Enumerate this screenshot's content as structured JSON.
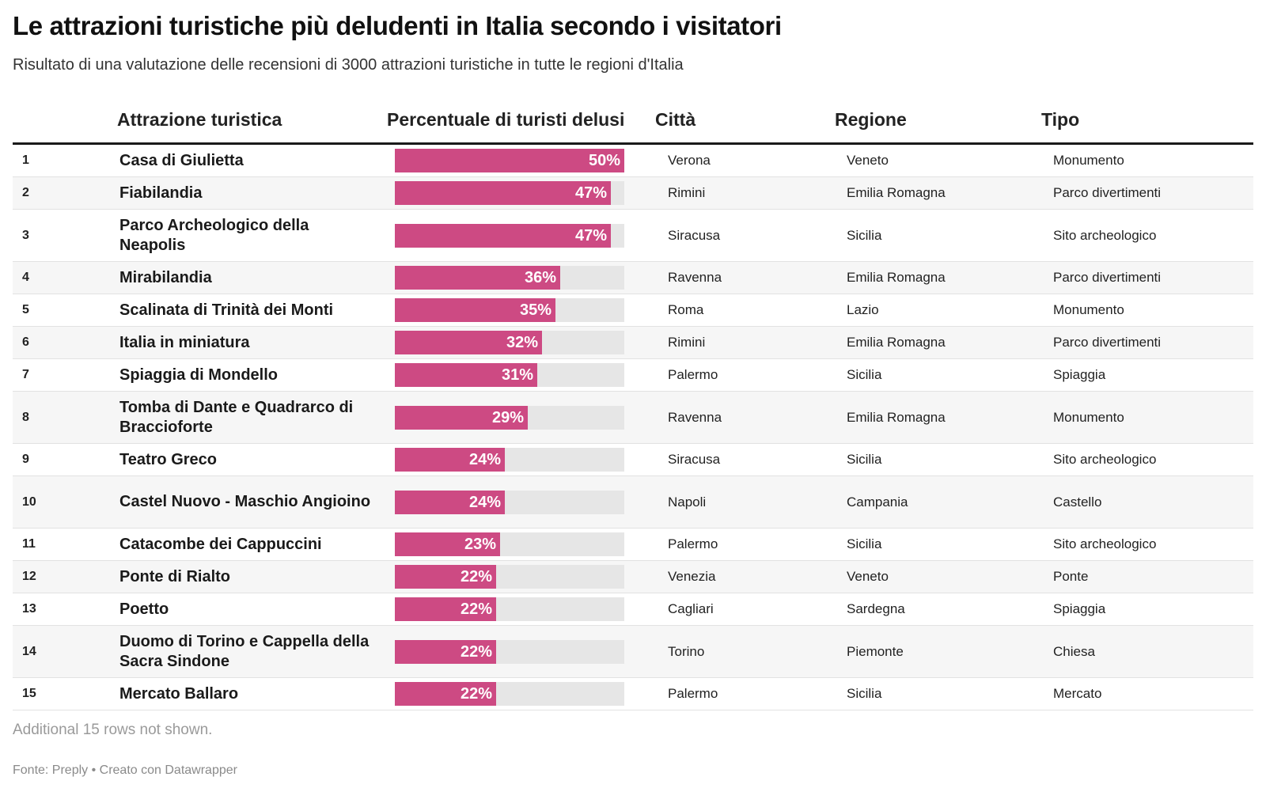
{
  "title": "Le attrazioni turistiche più deludenti in Italia secondo i visitatori",
  "subtitle": "Risultato di una valutazione delle recensioni di 3000 attrazioni turistiche in tutte le regioni d'Italia",
  "columns": {
    "attraction": "Attrazione turistica",
    "percent": "Percentuale di turisti delusi",
    "city": "Città",
    "region": "Regione",
    "type": "Tipo"
  },
  "colors": {
    "bar": "#cd4a83",
    "track": "#e6e6e6",
    "row_alt": "#f6f6f6"
  },
  "chart_data": {
    "type": "table",
    "value_max": 50,
    "rows": [
      {
        "rank": "1",
        "name": "Casa di Giulietta",
        "value": 50,
        "label": "50%",
        "city": "Verona",
        "region": "Veneto",
        "type": "Monumento"
      },
      {
        "rank": "2",
        "name": "Fiabilandia",
        "value": 47,
        "label": "47%",
        "city": "Rimini",
        "region": "Emilia Romagna",
        "type": "Parco divertimenti"
      },
      {
        "rank": "3",
        "name": "Parco Archeologico della Neapolis",
        "value": 47,
        "label": "47%",
        "city": "Siracusa",
        "region": "Sicilia",
        "type": "Sito archeologico"
      },
      {
        "rank": "4",
        "name": "Mirabilandia",
        "value": 36,
        "label": "36%",
        "city": "Ravenna",
        "region": "Emilia Romagna",
        "type": "Parco divertimenti"
      },
      {
        "rank": "5",
        "name": "Scalinata di Trinità dei Monti",
        "value": 35,
        "label": "35%",
        "city": "Roma",
        "region": "Lazio",
        "type": "Monumento"
      },
      {
        "rank": "6",
        "name": "Italia in miniatura",
        "value": 32,
        "label": "32%",
        "city": "Rimini",
        "region": "Emilia Romagna",
        "type": "Parco divertimenti"
      },
      {
        "rank": "7",
        "name": "Spiaggia di Mondello",
        "value": 31,
        "label": "31%",
        "city": "Palermo",
        "region": "Sicilia",
        "type": "Spiaggia"
      },
      {
        "rank": "8",
        "name": "Tomba di Dante e Quadrarco di Braccioforte",
        "value": 29,
        "label": "29%",
        "city": "Ravenna",
        "region": "Emilia Romagna",
        "type": "Monumento"
      },
      {
        "rank": "9",
        "name": "Teatro Greco",
        "value": 24,
        "label": "24%",
        "city": "Siracusa",
        "region": "Sicilia",
        "type": "Sito archeologico"
      },
      {
        "rank": "10",
        "name": "Castel Nuovo - Maschio Angioino",
        "value": 24,
        "label": "24%",
        "city": "Napoli",
        "region": "Campania",
        "type": "Castello"
      },
      {
        "rank": "11",
        "name": "Catacombe dei Cappuccini",
        "value": 23,
        "label": "23%",
        "city": "Palermo",
        "region": "Sicilia",
        "type": "Sito archeologico"
      },
      {
        "rank": "12",
        "name": "Ponte di Rialto",
        "value": 22,
        "label": "22%",
        "city": "Venezia",
        "region": "Veneto",
        "type": "Ponte"
      },
      {
        "rank": "13",
        "name": "Poetto",
        "value": 22,
        "label": "22%",
        "city": "Cagliari",
        "region": "Sardegna",
        "type": "Spiaggia"
      },
      {
        "rank": "14",
        "name": "Duomo di Torino e Cappella della Sacra Sindone",
        "value": 22,
        "label": "22%",
        "city": "Torino",
        "region": "Piemonte",
        "type": "Chiesa"
      },
      {
        "rank": "15",
        "name": "Mercato Ballaro",
        "value": 22,
        "label": "22%",
        "city": "Palermo",
        "region": "Sicilia",
        "type": "Mercato"
      }
    ]
  },
  "note": "Additional 15 rows not shown.",
  "footer": "Fonte: Preply • Creato con Datawrapper"
}
